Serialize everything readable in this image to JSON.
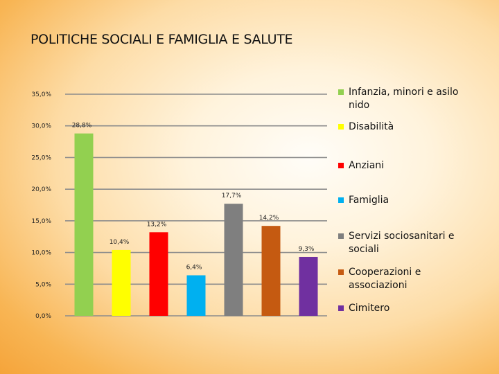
{
  "title": "POLITICHE SOCIALI E FAMIGLIA E SALUTE",
  "chart_data": {
    "type": "bar",
    "title": "POLITICHE SOCIALI E FAMIGLIA E SALUTE",
    "xlabel": "",
    "ylabel": "",
    "ylim": [
      0,
      35
    ],
    "yticks": [
      0,
      5,
      10,
      15,
      20,
      25,
      30,
      35
    ],
    "ytick_labels": [
      "0,0%",
      "5,0%",
      "10,0%",
      "15,0%",
      "20,0%",
      "25,0%",
      "30,0%",
      "35,0%"
    ],
    "grid": true,
    "legend_position": "right",
    "series": [
      {
        "name": "Infanzia, minori e asilo nido",
        "value": 28.8,
        "label": "28,8%",
        "color": "#92d050"
      },
      {
        "name": "Disabilità",
        "value": 10.4,
        "label": "10,4%",
        "color": "#ffff00"
      },
      {
        "name": "Anziani",
        "value": 13.2,
        "label": "13,2%",
        "color": "#ff0000"
      },
      {
        "name": "Famiglia",
        "value": 6.4,
        "label": "6,4%",
        "color": "#00b0f0"
      },
      {
        "name": "Servizi sociosanitari e sociali",
        "value": 17.7,
        "label": "17,7%",
        "color": "#7f7f7f"
      },
      {
        "name": "Cooperazioni e associazioni",
        "value": 14.2,
        "label": "14,2%",
        "color": "#c55a11"
      },
      {
        "name": "Cimitero",
        "value": 9.3,
        "label": "9,3%",
        "color": "#7030a0"
      }
    ]
  }
}
